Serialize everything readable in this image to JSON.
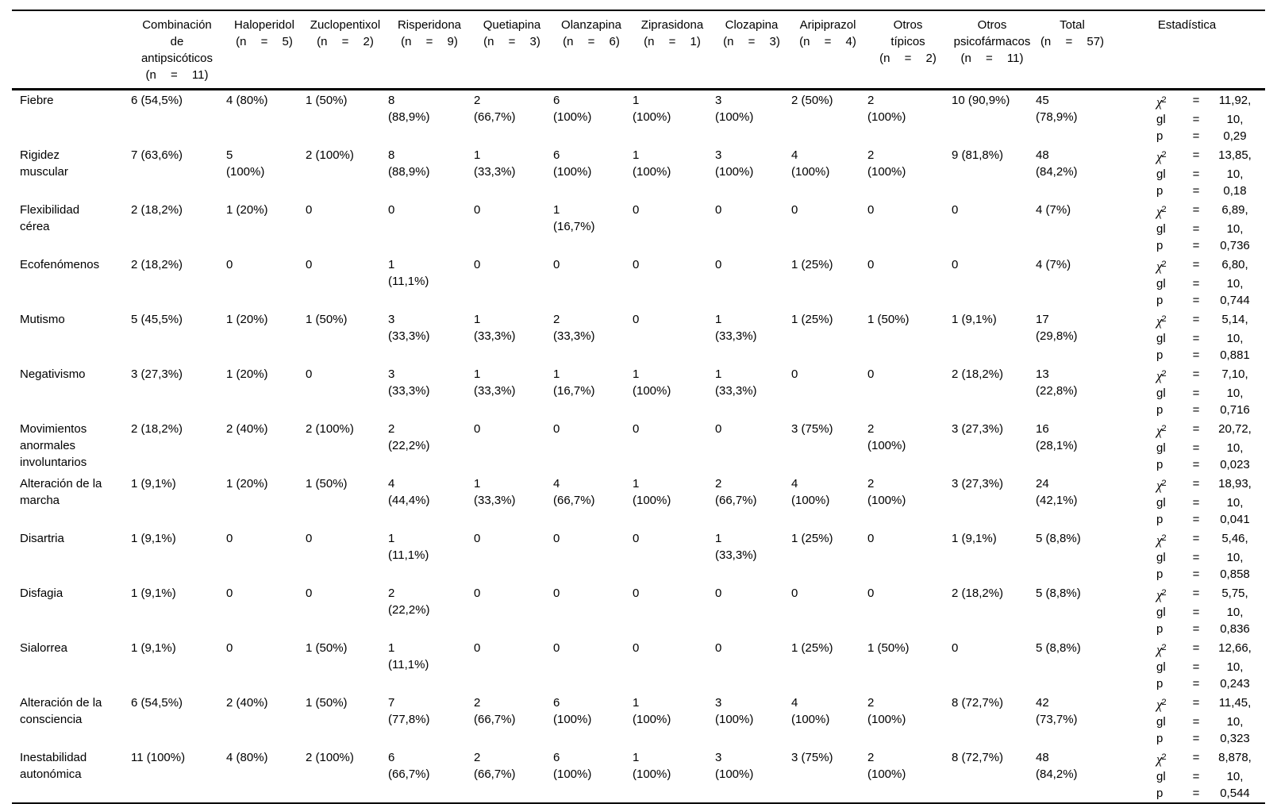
{
  "table": {
    "columns": [
      {
        "name": "",
        "n": ""
      },
      {
        "name": "Combinación\nde\nantipsicóticos",
        "n": "(n = 11)"
      },
      {
        "name": "Haloperidol",
        "n": "(n = 5)"
      },
      {
        "name": "Zuclopentixol",
        "n": "(n = 2)"
      },
      {
        "name": "Risperidona",
        "n": "(n = 9)"
      },
      {
        "name": "Quetiapina",
        "n": "(n = 3)"
      },
      {
        "name": "Olanzapina",
        "n": "(n = 6)"
      },
      {
        "name": "Ziprasidona",
        "n": "(n = 1)"
      },
      {
        "name": "Clozapina",
        "n": "(n = 3)"
      },
      {
        "name": "Aripiprazol",
        "n": "(n = 4)"
      },
      {
        "name": "Otros\ntípicos",
        "n": "(n = 2)"
      },
      {
        "name": "Otros\npsicofármacos",
        "n": "(n = 11)"
      },
      {
        "name": "Total",
        "n": "(n = 57)"
      },
      {
        "name": "Estadística",
        "n": ""
      }
    ],
    "stats_format": {
      "equals": "=",
      "order": [
        "chi2",
        "gl",
        "p"
      ],
      "symbols": {
        "chi2": {
          "base": "χ",
          "sup": "2"
        },
        "gl": {
          "base": "gl"
        },
        "p": {
          "base": "p"
        }
      }
    },
    "rows": [
      {
        "label": "Fiebre",
        "cells": [
          "6 (54,5%)",
          "4 (80%)",
          "1 (50%)",
          "8\n(88,9%)",
          "2\n(66,7%)",
          "6\n(100%)",
          "1\n(100%)",
          "3\n(100%)",
          "2 (50%)",
          "2\n(100%)",
          "10 (90,9%)",
          "45\n(78,9%)"
        ],
        "stats": {
          "chi2": "11,92,",
          "gl": "10,",
          "p": "0,29"
        }
      },
      {
        "label": "Rigidez\nmuscular",
        "cells": [
          "7 (63,6%)",
          "5\n(100%)",
          "2 (100%)",
          "8\n(88,9%)",
          "1\n(33,3%)",
          "6\n(100%)",
          "1\n(100%)",
          "3\n(100%)",
          "4\n(100%)",
          "2\n(100%)",
          "9 (81,8%)",
          "48\n(84,2%)"
        ],
        "stats": {
          "chi2": "13,85,",
          "gl": "10,",
          "p": "0,18"
        }
      },
      {
        "label": "Flexibilidad\ncérea",
        "cells": [
          "2 (18,2%)",
          "1 (20%)",
          "0",
          "0",
          "0",
          "1\n(16,7%)",
          "0",
          "0",
          "0",
          "0",
          "0",
          "4 (7%)"
        ],
        "stats": {
          "chi2": "6,89,",
          "gl": "10,",
          "p": "0,736"
        }
      },
      {
        "label": "Ecofenómenos",
        "cells": [
          "2 (18,2%)",
          "0",
          "0",
          "1\n(11,1%)",
          "0",
          "0",
          "0",
          "0",
          "1 (25%)",
          "0",
          "0",
          "4 (7%)"
        ],
        "stats": {
          "chi2": "6,80,",
          "gl": "10,",
          "p": "0,744"
        }
      },
      {
        "label": "Mutismo",
        "cells": [
          "5 (45,5%)",
          "1 (20%)",
          "1 (50%)",
          "3\n(33,3%)",
          "1\n(33,3%)",
          "2\n(33,3%)",
          "0",
          "1\n(33,3%)",
          "1 (25%)",
          "1 (50%)",
          "1 (9,1%)",
          "17\n(29,8%)"
        ],
        "stats": {
          "chi2": "5,14,",
          "gl": "10,",
          "p": "0,881"
        }
      },
      {
        "label": "Negativismo",
        "cells": [
          "3 (27,3%)",
          "1 (20%)",
          "0",
          "3\n(33,3%)",
          "1\n(33,3%)",
          "1\n(16,7%)",
          "1\n(100%)",
          "1\n(33,3%)",
          "0",
          "0",
          "2 (18,2%)",
          "13\n(22,8%)"
        ],
        "stats": {
          "chi2": "7,10,",
          "gl": "10,",
          "p": "0,716"
        }
      },
      {
        "label": "Movimientos\nanormales\ninvoluntarios",
        "cells": [
          "2 (18,2%)",
          "2 (40%)",
          "2 (100%)",
          "2\n(22,2%)",
          "0",
          "0",
          "0",
          "0",
          "3 (75%)",
          "2\n(100%)",
          "3 (27,3%)",
          "16\n(28,1%)"
        ],
        "stats": {
          "chi2": "20,72,",
          "gl": "10,",
          "p": "0,023"
        }
      },
      {
        "label": "Alteración de la\nmarcha",
        "cells": [
          "1 (9,1%)",
          "1 (20%)",
          "1 (50%)",
          "4\n(44,4%)",
          "1\n(33,3%)",
          "4\n(66,7%)",
          "1\n(100%)",
          "2\n(66,7%)",
          "4\n(100%)",
          "2\n(100%)",
          "3 (27,3%)",
          "24\n(42,1%)"
        ],
        "stats": {
          "chi2": "18,93,",
          "gl": "10,",
          "p": "0,041"
        }
      },
      {
        "label": "Disartria",
        "cells": [
          "1 (9,1%)",
          "0",
          "0",
          "1\n(11,1%)",
          "0",
          "0",
          "0",
          "1\n(33,3%)",
          "1 (25%)",
          "0",
          "1 (9,1%)",
          "5 (8,8%)"
        ],
        "stats": {
          "chi2": "5,46,",
          "gl": "10,",
          "p": "0,858"
        }
      },
      {
        "label": "Disfagia",
        "cells": [
          "1 (9,1%)",
          "0",
          "0",
          "2\n(22,2%)",
          "0",
          "0",
          "0",
          "0",
          "0",
          "0",
          "2 (18,2%)",
          "5 (8,8%)"
        ],
        "stats": {
          "chi2": "5,75,",
          "gl": "10,",
          "p": "0,836"
        }
      },
      {
        "label": "Sialorrea",
        "cells": [
          "1 (9,1%)",
          "0",
          "1 (50%)",
          "1\n(11,1%)",
          "0",
          "0",
          "0",
          "0",
          "1 (25%)",
          "1 (50%)",
          "0",
          "5 (8,8%)"
        ],
        "stats": {
          "chi2": "12,66,",
          "gl": "10,",
          "p": "0,243"
        }
      },
      {
        "label": "Alteración de la\nconsciencia",
        "cells": [
          "6 (54,5%)",
          "2 (40%)",
          "1 (50%)",
          "7\n(77,8%)",
          "2\n(66,7%)",
          "6\n(100%)",
          "1\n(100%)",
          "3\n(100%)",
          "4\n(100%)",
          "2\n(100%)",
          "8 (72,7%)",
          "42\n(73,7%)"
        ],
        "stats": {
          "chi2": "11,45,",
          "gl": "10,",
          "p": "0,323"
        }
      },
      {
        "label": "Inestabilidad\nautonómica",
        "cells": [
          "11 (100%)",
          "4 (80%)",
          "2 (100%)",
          "6\n(66,7%)",
          "2\n(66,7%)",
          "6\n(100%)",
          "1\n(100%)",
          "3\n(100%)",
          "3 (75%)",
          "2\n(100%)",
          "8 (72,7%)",
          "48\n(84,2%)"
        ],
        "stats": {
          "chi2": "8,878,",
          "gl": "10,",
          "p": "0,544"
        }
      }
    ]
  }
}
